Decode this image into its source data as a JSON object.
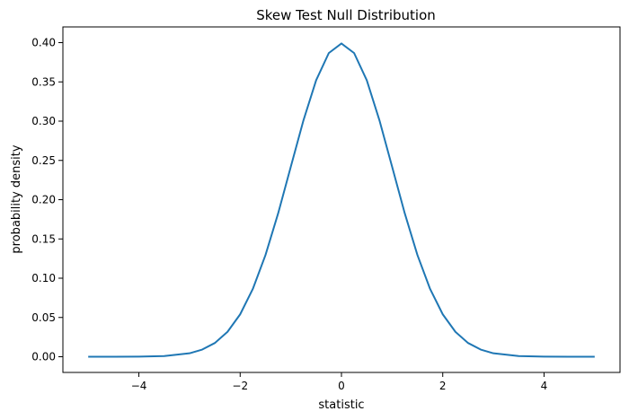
{
  "chart_data": {
    "type": "line",
    "title": "Skew Test Null Distribution",
    "xlabel": "statistic",
    "ylabel": "probability density",
    "xlim": [
      -5.5,
      5.5
    ],
    "ylim": [
      -0.02,
      0.42
    ],
    "x_ticks": [
      -4,
      -2,
      0,
      2,
      4
    ],
    "x_tick_labels": [
      "−4",
      "−2",
      "0",
      "2",
      "4"
    ],
    "y_ticks": [
      0.0,
      0.05,
      0.1,
      0.15,
      0.2,
      0.25,
      0.3,
      0.35,
      0.4
    ],
    "y_tick_labels": [
      "0.00",
      "0.05",
      "0.10",
      "0.15",
      "0.20",
      "0.25",
      "0.30",
      "0.35",
      "0.40"
    ],
    "grid": false,
    "series": [
      {
        "color": "#1f77b4",
        "x": [
          -5.0,
          -4.5,
          -4.0,
          -3.5,
          -3.0,
          -2.75,
          -2.5,
          -2.25,
          -2.0,
          -1.75,
          -1.5,
          -1.25,
          -1.0,
          -0.75,
          -0.5,
          -0.25,
          0.0,
          0.25,
          0.5,
          0.75,
          1.0,
          1.25,
          1.5,
          1.75,
          2.0,
          2.25,
          2.5,
          2.75,
          3.0,
          3.5,
          4.0,
          4.5,
          5.0
        ],
        "y": [
          0.0,
          0.0,
          0.0001,
          0.0009,
          0.0044,
          0.0091,
          0.0175,
          0.0317,
          0.054,
          0.0863,
          0.1295,
          0.1826,
          0.242,
          0.3011,
          0.3521,
          0.3867,
          0.3989,
          0.3867,
          0.3521,
          0.3011,
          0.242,
          0.1826,
          0.1295,
          0.0863,
          0.054,
          0.0317,
          0.0175,
          0.0091,
          0.0044,
          0.0009,
          0.0001,
          0.0,
          0.0
        ]
      }
    ]
  }
}
